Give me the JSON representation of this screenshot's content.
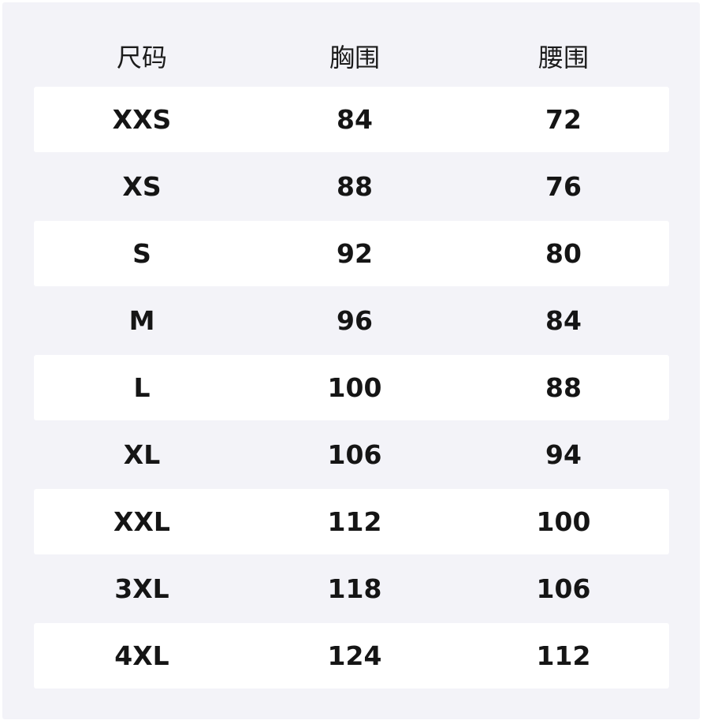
{
  "table": {
    "headers": [
      "尺码",
      "胸围",
      "腰围"
    ],
    "rows": [
      [
        "XXS",
        "84",
        "72"
      ],
      [
        "XS",
        "88",
        "76"
      ],
      [
        "S",
        "92",
        "80"
      ],
      [
        "M",
        "96",
        "84"
      ],
      [
        "L",
        "100",
        "88"
      ],
      [
        "XL",
        "106",
        "94"
      ],
      [
        "XXL",
        "112",
        "100"
      ],
      [
        "3XL",
        "118",
        "106"
      ],
      [
        "4XL",
        "124",
        "112"
      ]
    ]
  },
  "colors": {
    "background": "#f3f3f8",
    "row_alt": "#ffffff",
    "text": "#151515"
  }
}
